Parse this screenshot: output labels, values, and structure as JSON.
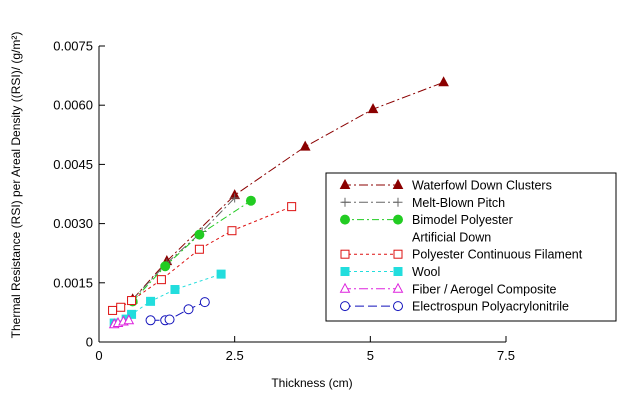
{
  "chart_data": {
    "type": "scatter",
    "title": "",
    "xlabel": "Thickness (cm)",
    "ylabel": "Thermal Resistance (RSI) per Areal Density ((RSI)/ (g/m²)",
    "xlim": [
      0,
      7.5
    ],
    "ylim": [
      0,
      0.0075
    ],
    "x_ticks": [
      "0",
      "2.5",
      "5",
      "7.5"
    ],
    "y_ticks": [
      "0",
      "0.0015",
      "0.0030",
      "0.0045",
      "0.0060",
      "0.0075"
    ],
    "grid": false,
    "legend_position": "right",
    "series": [
      {
        "name": "Waterfowl Down Clusters",
        "marker": "triangle-filled",
        "dash": "9,3,2,3",
        "color": "#8b0000",
        "x": [
          0.62,
          1.25,
          2.5,
          3.8,
          5.05,
          6.35
        ],
        "y": [
          0.00108,
          0.00205,
          0.00372,
          0.00495,
          0.0059,
          0.00658
        ]
      },
      {
        "name": "Melt-Blown Pitch",
        "marker": "plus",
        "dash": "9,3,2,3",
        "color": "#666666",
        "x": [
          0.6,
          1.25,
          1.9,
          2.5
        ],
        "y": [
          0.00105,
          0.002,
          0.0028,
          0.00365
        ]
      },
      {
        "name": "Bimodel Polyester",
        "marker": "circle-filled",
        "dash": "7,3,2,3",
        "color": "#22cc22",
        "x": [
          0.62,
          1.22,
          1.85,
          2.8
        ],
        "y": [
          0.00103,
          0.00192,
          0.00272,
          0.00358
        ]
      },
      {
        "name": "Artificial Down",
        "marker": "none",
        "dash": "none",
        "color": "#000000",
        "x": [],
        "y": []
      },
      {
        "name": "Polyester Continuous Filament",
        "marker": "square-open",
        "dash": "3,3",
        "color": "#dd1111",
        "x": [
          0.25,
          0.4,
          0.6,
          1.15,
          1.85,
          2.45,
          3.55
        ],
        "y": [
          0.0008,
          0.00088,
          0.00105,
          0.00158,
          0.00235,
          0.00282,
          0.00343
        ]
      },
      {
        "name": "Wool",
        "marker": "square-filled",
        "dash": "3,3",
        "color": "#22dddd",
        "x": [
          0.28,
          0.5,
          0.6,
          0.95,
          1.4,
          2.25
        ],
        "y": [
          0.00048,
          0.00058,
          0.0007,
          0.00103,
          0.00133,
          0.00172
        ]
      },
      {
        "name": "Fiber / Aerogel Composite",
        "marker": "triangle-open",
        "dash": "9,3,2,3",
        "color": "#dd22dd",
        "x": [
          0.28,
          0.35,
          0.45,
          0.55
        ],
        "y": [
          0.00045,
          0.00048,
          0.00052,
          0.00055
        ]
      },
      {
        "name": "Electrospun Polyacrylonitrile",
        "marker": "circle-open",
        "dash": "9,4",
        "color": "#1111bb",
        "x": [
          0.95,
          1.22,
          1.3,
          1.65,
          1.95
        ],
        "y": [
          0.00055,
          0.00055,
          0.00057,
          0.00083,
          0.00101
        ]
      }
    ]
  }
}
